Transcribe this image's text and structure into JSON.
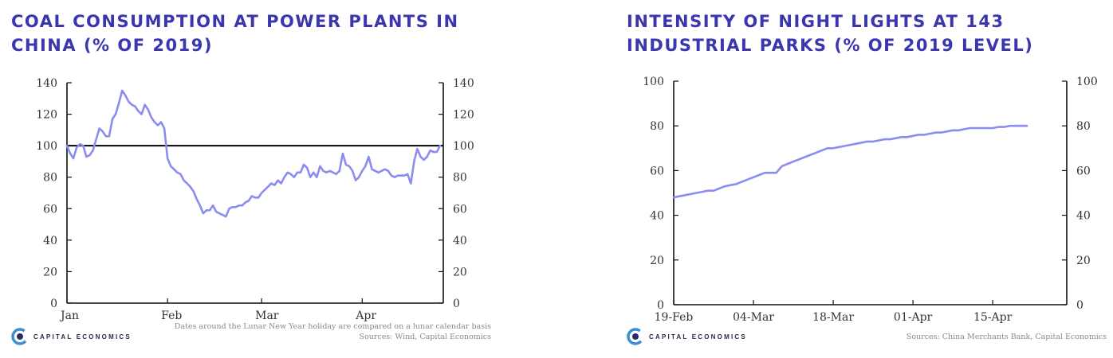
{
  "chart_data": [
    {
      "type": "line",
      "title": "COAL CONSUMPTION AT POWER PLANTS IN CHINA (% OF 2019)",
      "ylim": [
        0,
        140
      ],
      "yticks": [
        "0",
        "20",
        "40",
        "60",
        "80",
        "100",
        "120",
        "140"
      ],
      "yticks_right": [
        "0",
        "20",
        "40",
        "60",
        "80",
        "100",
        "120",
        "140"
      ],
      "xticks": [
        {
          "label": "Jan",
          "day": 0
        },
        {
          "label": "Feb",
          "day": 31
        },
        {
          "label": "Mar",
          "day": 60
        },
        {
          "label": "Apr",
          "day": 91
        }
      ],
      "xlim_days": [
        0,
        116
      ],
      "reference_line": 100,
      "line_color": "#8a8cf0",
      "series": [
        {
          "x": [
            0,
            1,
            2,
            3,
            4,
            5,
            6,
            7,
            8,
            9,
            10,
            11,
            12,
            13,
            14,
            15,
            16,
            17,
            18,
            19,
            20,
            21,
            22,
            23,
            24,
            25,
            26,
            27,
            28,
            29,
            30,
            31,
            32,
            33,
            34,
            35,
            36,
            37,
            38,
            39,
            40,
            41,
            42,
            43,
            44,
            45,
            46,
            47,
            48,
            49,
            50,
            51,
            52,
            53,
            54,
            55,
            56,
            57,
            58,
            59,
            60,
            61,
            62,
            63,
            64,
            65,
            66,
            67,
            68,
            69,
            70,
            71,
            72,
            73,
            74,
            75,
            76,
            77,
            78,
            79,
            80,
            81,
            82,
            83,
            84,
            85,
            86,
            87,
            88,
            89,
            90,
            91,
            92,
            93,
            94,
            95,
            96,
            97,
            98,
            99,
            100,
            101,
            102,
            103,
            104,
            105,
            106,
            107,
            108,
            109,
            110,
            111,
            112,
            113,
            114,
            115
          ],
          "values": [
            100,
            95,
            92,
            99,
            101,
            100,
            93,
            94,
            97,
            104,
            111,
            109,
            106,
            106,
            117,
            120,
            127,
            135,
            132,
            128,
            126,
            125,
            122,
            120,
            126,
            123,
            118,
            115,
            113,
            115,
            111,
            92,
            87,
            85,
            83,
            82,
            78,
            76,
            74,
            71,
            66,
            62,
            57,
            59,
            59,
            62,
            58,
            57,
            56,
            55,
            60,
            61,
            61,
            62,
            62,
            64,
            65,
            68,
            67,
            67,
            70,
            72,
            74,
            76,
            75,
            78,
            76,
            80,
            83,
            82,
            80,
            83,
            83,
            88,
            86,
            80,
            83,
            80,
            87,
            84,
            83,
            84,
            83,
            82,
            84,
            95,
            88,
            87,
            84,
            78,
            80,
            84,
            87,
            93,
            85,
            84,
            83,
            84,
            85,
            84,
            81,
            80,
            81,
            81,
            81,
            82,
            76,
            90,
            98,
            93,
            91,
            93,
            97,
            96,
            96,
            100
          ]
        }
      ],
      "notes": [
        "Dates around the Lunar New Year holiday are compared on a lunar calendar basis",
        "Sources: Wind, Capital Economics"
      ]
    },
    {
      "type": "line",
      "title": "INTENSITY OF NIGHT LIGHTS AT 143 INDUSTRIAL PARKS (% OF 2019 LEVEL)",
      "ylim": [
        0,
        100
      ],
      "yticks": [
        "0",
        "20",
        "40",
        "60",
        "80",
        "100"
      ],
      "yticks_right": [
        "0",
        "20",
        "40",
        "60",
        "80",
        "100"
      ],
      "xticks": [
        {
          "label": "19-Feb",
          "day": 0
        },
        {
          "label": "04-Mar",
          "day": 14
        },
        {
          "label": "18-Mar",
          "day": 28
        },
        {
          "label": "01-Apr",
          "day": 42
        },
        {
          "label": "15-Apr",
          "day": 56
        }
      ],
      "xlim_days": [
        0,
        69
      ],
      "line_color": "#8a8cf0",
      "series": [
        {
          "x": [
            0,
            1,
            2,
            3,
            4,
            5,
            6,
            7,
            8,
            9,
            10,
            11,
            12,
            13,
            14,
            15,
            16,
            17,
            18,
            19,
            20,
            21,
            22,
            23,
            24,
            25,
            26,
            27,
            28,
            29,
            30,
            31,
            32,
            33,
            34,
            35,
            36,
            37,
            38,
            39,
            40,
            41,
            42,
            43,
            44,
            45,
            46,
            47,
            48,
            49,
            50,
            51,
            52,
            53,
            54,
            55,
            56,
            57,
            58,
            59,
            60,
            61,
            62
          ],
          "values": [
            48,
            48.5,
            49,
            49.5,
            50,
            50.5,
            51,
            51,
            52,
            53,
            53.5,
            54,
            55,
            56,
            57,
            58,
            59,
            59,
            59,
            62,
            63,
            64,
            65,
            66,
            67,
            68,
            69,
            70,
            70,
            70.5,
            71,
            71.5,
            72,
            72.5,
            73,
            73,
            73.5,
            74,
            74,
            74.5,
            75,
            75,
            75.5,
            76,
            76,
            76.5,
            77,
            77,
            77.5,
            78,
            78,
            78.5,
            79,
            79,
            79,
            79,
            79,
            79.5,
            79.5,
            80,
            80,
            80,
            80
          ]
        }
      ],
      "notes": [
        "Sources: China Merchants Bank, Capital Economics"
      ]
    }
  ],
  "branding": {
    "name": "CAPITAL ECONOMICS"
  }
}
